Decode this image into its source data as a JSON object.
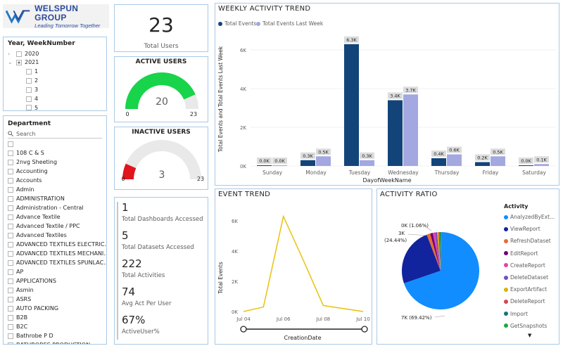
{
  "logo": {
    "name": "WELSPUN GROUP",
    "tagline": "Leading Tomorrow Together"
  },
  "year_slicer": {
    "title": "Year, WeekNumber",
    "items": [
      {
        "label": "2020",
        "expand": "›"
      },
      {
        "label": "2021",
        "expand": "⌄"
      }
    ],
    "weeks": [
      "1",
      "2",
      "3",
      "4",
      "5"
    ]
  },
  "department": {
    "title": "Department",
    "search_placeholder": "Search",
    "items": [
      "108 C & S",
      "2nvg Sheeting",
      "Accounting",
      "Accounts",
      "Admin",
      "ADMINISTRATION",
      "Administration - Central",
      "Advance Textile",
      "Advanced Textile / PPC",
      "Advanced Textiles",
      "ADVANCED TEXTILES ELECTRIC...",
      "ADVANCED TEXTILES MECHANI...",
      "ADVANCED TEXTILES SPUNLAC...",
      "AP",
      "APPLICATIONS",
      "Asmin",
      "ASRS",
      "AUTO PACKING",
      "B2B",
      "B2C",
      "Bathrobe P D",
      "BATHROBES PRODUCTION"
    ]
  },
  "total_users": {
    "value": "23",
    "label": "Total Users"
  },
  "active_users": {
    "title": "ACTIVE USERS",
    "value": "20",
    "min": "0",
    "max": "23",
    "fraction": 0.8696,
    "color": "#17d44a"
  },
  "inactive_users": {
    "title": "INACTIVE USERS",
    "value": "3",
    "min": "0",
    "max": "23",
    "fraction": 0.1304,
    "color": "#e0161c"
  },
  "kpis": [
    {
      "value": "1",
      "label": "Total Dashboards Accessed"
    },
    {
      "value": "5",
      "label": "Total Datasets Accessed"
    },
    {
      "value": "222",
      "label": "Total Activities"
    },
    {
      "value": "74",
      "label": "Avg Act Per User"
    },
    {
      "value": "67%",
      "label": "ActiveUser%"
    }
  ],
  "weekly": {
    "title": "WEEKLY ACTIVITY TREND",
    "legend": [
      "Total Events",
      "Total Events Last Week"
    ],
    "ylabel": "Total Events and Total Events Last Week",
    "xlabel": "DayofWeekName",
    "yticks": [
      "0K",
      "2K",
      "4K",
      "6K"
    ]
  },
  "event_trend": {
    "title": "EVENT TREND",
    "ylabel": "Total Events",
    "xlabel": "CreationDate",
    "yticks": [
      "0K",
      "2K",
      "4K",
      "6K"
    ],
    "xticks": [
      "Jul 04",
      "Jul 06",
      "Jul 08",
      "Jul 10"
    ]
  },
  "activity_ratio": {
    "title": "ACTIVITY RATIO",
    "legend_title": "Activity",
    "labels": [
      "0K (1.06%)",
      "3K",
      "(24.44%)",
      "7K (69.42%)"
    ],
    "legend": [
      {
        "name": "AnalyzedByExt...",
        "color": "#118dff"
      },
      {
        "name": "ViewReport",
        "color": "#12239e"
      },
      {
        "name": "RefreshDataset",
        "color": "#e66c37"
      },
      {
        "name": "EditReport",
        "color": "#6b007b"
      },
      {
        "name": "CreateReport",
        "color": "#e044a7"
      },
      {
        "name": "DeleteDataset",
        "color": "#744ec2"
      },
      {
        "name": "ExportArtifact",
        "color": "#d9b300"
      },
      {
        "name": "DeleteReport",
        "color": "#d64550"
      },
      {
        "name": "Import",
        "color": "#197278"
      },
      {
        "name": "GetSnapshots",
        "color": "#1aab40"
      }
    ],
    "more": "▼"
  },
  "chart_data": [
    {
      "type": "bar",
      "title": "WEEKLY ACTIVITY TREND",
      "categories": [
        "Sunday",
        "Monday",
        "Tuesday",
        "Wednesday",
        "Thursday",
        "Friday",
        "Saturday"
      ],
      "series": [
        {
          "name": "Total Events",
          "values": [
            0.0,
            0.3,
            6.3,
            3.4,
            0.4,
            0.2,
            0.0
          ],
          "labels": [
            "0.0K",
            "0.3K",
            "6.3K",
            "3.4K",
            "0.4K",
            "0.2K",
            "0.0K"
          ],
          "color": "#12447a"
        },
        {
          "name": "Total Events Last Week",
          "values": [
            0.0,
            0.5,
            0.3,
            3.7,
            0.6,
            0.5,
            0.1
          ],
          "labels": [
            "0.0K",
            "0.5K",
            "0.3K",
            "3.7K",
            "0.6K",
            "0.5K",
            "0.1K"
          ],
          "color": "#a4a8e0"
        }
      ],
      "xlabel": "DayofWeekName",
      "ylabel": "Total Events and Total Events Last Week",
      "ylim": [
        0,
        6.8
      ],
      "yunit": "K"
    },
    {
      "type": "line",
      "title": "EVENT TREND",
      "x": [
        "Jul 04",
        "Jul 05",
        "Jul 06",
        "Jul 07",
        "Jul 08",
        "Jul 09",
        "Jul 10"
      ],
      "series": [
        {
          "name": "Total Events",
          "values": [
            0.0,
            0.3,
            6.3,
            3.4,
            0.4,
            0.2,
            0.0
          ],
          "color": "#e8c20f"
        }
      ],
      "xlabel": "CreationDate",
      "ylabel": "Total Events",
      "ylim": [
        0,
        6.8
      ],
      "yunit": "K"
    },
    {
      "type": "pie",
      "title": "ACTIVITY RATIO",
      "slices": [
        {
          "name": "AnalyzedByExt...",
          "value": 69.42,
          "color": "#118dff"
        },
        {
          "name": "ViewReport",
          "value": 24.44,
          "color": "#12239e"
        },
        {
          "name": "RefreshDataset",
          "value": 1.5,
          "color": "#e66c37"
        },
        {
          "name": "EditReport",
          "value": 1.06,
          "color": "#6b007b"
        },
        {
          "name": "CreateReport",
          "value": 1.0,
          "color": "#e044a7"
        },
        {
          "name": "DeleteDataset",
          "value": 0.8,
          "color": "#744ec2"
        },
        {
          "name": "ExportArtifact",
          "value": 0.6,
          "color": "#d9b300"
        },
        {
          "name": "DeleteReport",
          "value": 0.5,
          "color": "#d64550"
        },
        {
          "name": "Import",
          "value": 0.4,
          "color": "#197278"
        },
        {
          "name": "GetSnapshots",
          "value": 0.28,
          "color": "#1aab40"
        }
      ]
    }
  ]
}
